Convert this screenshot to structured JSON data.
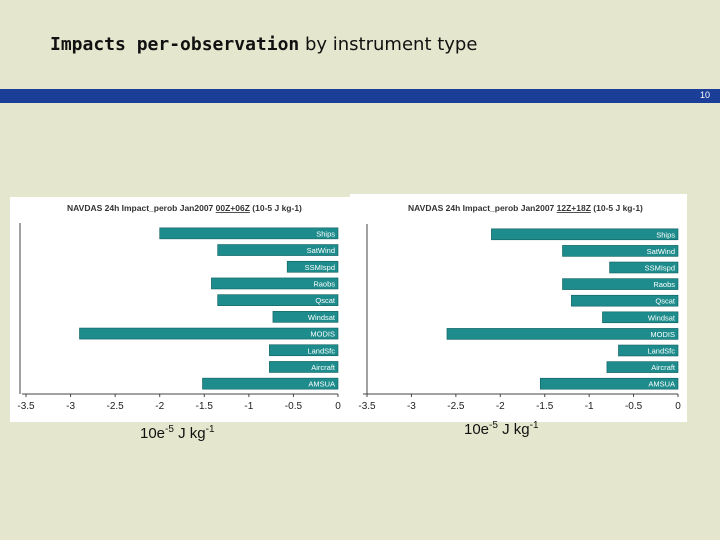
{
  "slide": {
    "title_bold": "Impacts per-observation",
    "title_rest": " by instrument type",
    "page_number": "10",
    "unit_left": {
      "base": "10e",
      "exp1": "-5",
      "mid": " J kg",
      "exp2": "-1"
    },
    "unit_right": {
      "base": "10e",
      "exp1": "-5",
      "mid": " J kg",
      "exp2": "-1"
    }
  },
  "colors": {
    "bar": "#1e8c8c",
    "bar_edge": "#0f5f5f",
    "header_bar": "#1b3f99",
    "background": "#e4e6cd"
  },
  "chart_data": [
    {
      "type": "bar",
      "orientation": "horizontal",
      "title_prefix": "NAVDAS 24h Impact_perob Jan2007 ",
      "title_underlined": "00Z+06Z",
      "title_unit": " (10-5 J kg-1)",
      "categories": [
        "Ships",
        "SatWind",
        "SSMIspd",
        "Raobs",
        "Qscat",
        "Windsat",
        "MODIS",
        "LandSfc",
        "Aircraft",
        "AMSUA"
      ],
      "values": [
        -2.0,
        -1.35,
        -0.57,
        -1.42,
        -1.35,
        -0.73,
        -2.9,
        -0.77,
        -0.77,
        -1.52
      ],
      "xlim": [
        -3.5,
        0
      ],
      "xticks": [
        -3.5,
        -3,
        -2.5,
        -2,
        -1.5,
        -1,
        -0.5,
        0
      ],
      "xtick_labels": [
        "-3.5",
        "-3",
        "-2.5",
        "-2",
        "-1.5",
        "-1",
        "-0.5",
        "0"
      ]
    },
    {
      "type": "bar",
      "orientation": "horizontal",
      "title_prefix": "NAVDAS 24h Impact_perob Jan2007 ",
      "title_underlined": "12Z+18Z",
      "title_unit": " (10-5 J kg-1)",
      "categories": [
        "Ships",
        "SatWind",
        "SSMIspd",
        "Raobs",
        "Qscat",
        "Windsat",
        "MODIS",
        "LandSfc",
        "Aircraft",
        "AMSUA"
      ],
      "values": [
        -2.1,
        -1.3,
        -0.77,
        -1.3,
        -1.2,
        -0.85,
        -2.6,
        -0.67,
        -0.8,
        -1.55
      ],
      "xlim": [
        -3.5,
        0
      ],
      "xticks": [
        -3.5,
        -3,
        -2.5,
        -2,
        -1.5,
        -1,
        -0.5,
        0
      ],
      "xtick_labels": [
        "-3.5",
        "-3",
        "-2.5",
        "-2",
        "-1.5",
        "-1",
        "-0.5",
        "0"
      ]
    }
  ]
}
